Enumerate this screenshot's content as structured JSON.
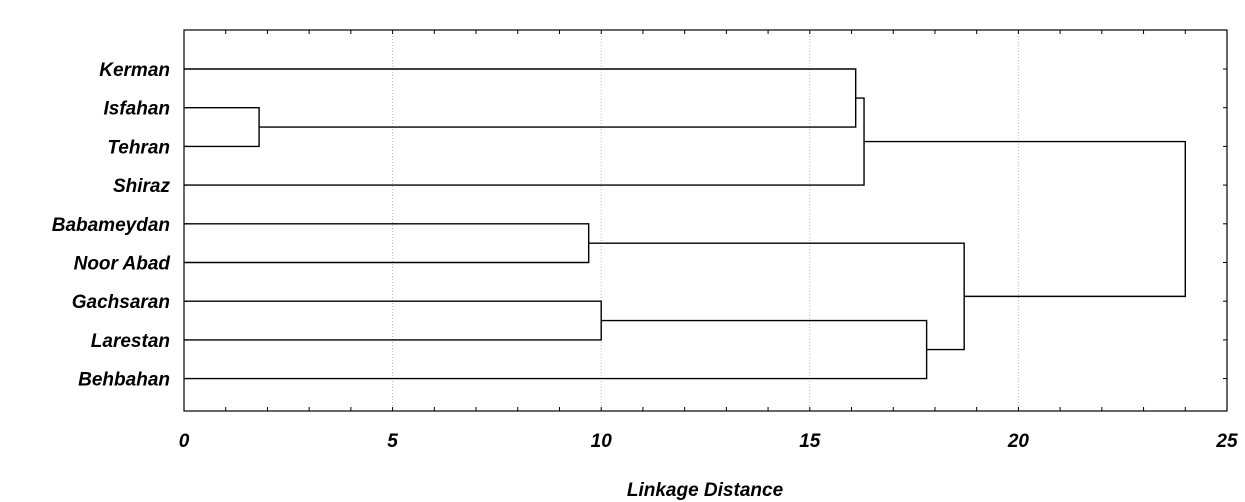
{
  "chart_data": {
    "type": "dendrogram",
    "xlabel": "Linkage Distance",
    "xlim": [
      0,
      25
    ],
    "xticks": [
      0,
      5,
      10,
      15,
      20,
      25
    ],
    "grid": true,
    "leaves": [
      "Kerman",
      "Isfahan",
      "Tehran",
      "Shiraz",
      "Babameydan",
      "Noor Abad",
      "Gachsaran",
      "Larestan",
      "Behbahan"
    ],
    "merges": [
      {
        "left": "Isfahan",
        "right": "Tehran",
        "distance": 1.8
      },
      {
        "left": "Babameydan",
        "right": "Noor Abad",
        "distance": 9.7
      },
      {
        "left": "Gachsaran",
        "right": "Larestan",
        "distance": 10.0
      },
      {
        "left": "Kerman",
        "right": "Isfahan+Tehran",
        "distance": 16.1
      },
      {
        "left": "Kerman+Isfahan+Tehran",
        "right": "Shiraz",
        "distance": 16.3
      },
      {
        "left": "Gachsaran+Larestan",
        "right": "Behbahan",
        "distance": 17.8
      },
      {
        "left": "Babameydan+Noor Abad",
        "right": "Gachsaran+Larestan+Behbahan",
        "distance": 18.7
      },
      {
        "left": "Kerman+Isfahan+Tehran+Shiraz",
        "right": "Babameydan+Noor Abad+Gachsaran+Larestan+Behbahan",
        "distance": 24.0
      }
    ]
  }
}
